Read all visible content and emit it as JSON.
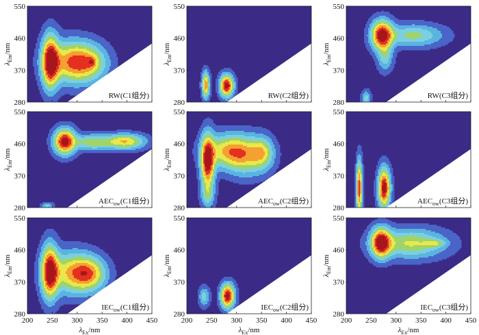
{
  "colors": {
    "background": "#3b2a86",
    "levels": [
      "#3b2a86",
      "#4a64c8",
      "#5ab4e0",
      "#7ccfe0",
      "#9ed46a",
      "#e8e84a",
      "#f5a030",
      "#e53020",
      "#a8161c"
    ],
    "masked": "#ffffff",
    "frame": "#222222"
  },
  "chart_data": {
    "type": "heatmap",
    "layout": "3x3 grid of EEM contour panels",
    "xlabel": {
      "symbol": "λ",
      "sub": "Ex",
      "suffix": "/nm"
    },
    "ylabel": {
      "symbol": "λ",
      "sub": "Em",
      "suffix": "/nm"
    },
    "xlim": [
      200,
      450
    ],
    "ylim": [
      280,
      550
    ],
    "xticks": [
      "200",
      "250",
      "300",
      "350",
      "400",
      "450"
    ],
    "yticks": [
      "280",
      "370",
      "460",
      "550"
    ],
    "panels": [
      {
        "label_main": "RW",
        "label_sub": "",
        "label_tail": "(C1组分)",
        "peaks": [
          {
            "ex": 246,
            "em": 393,
            "sx": 11,
            "sy": 48,
            "amp": 1.0
          },
          {
            "ex": 285,
            "em": 393,
            "sx": 30,
            "sy": 38,
            "amp": 0.62
          },
          {
            "ex": 322,
            "em": 390,
            "sx": 26,
            "sy": 34,
            "amp": 0.5
          },
          {
            "ex": 330,
            "em": 393,
            "sx": 6,
            "sy": 10,
            "amp": 0.25
          }
        ]
      },
      {
        "label_main": "RW",
        "label_sub": "",
        "label_tail": "(C2组分)",
        "peaks": [
          {
            "ex": 238,
            "em": 328,
            "sx": 5,
            "sy": 24,
            "amp": 0.72
          },
          {
            "ex": 280,
            "em": 326,
            "sx": 9,
            "sy": 20,
            "amp": 1.0
          }
        ]
      },
      {
        "label_main": "RW",
        "label_sub": "",
        "label_tail": "(C3组分)",
        "peaks": [
          {
            "ex": 272,
            "em": 468,
            "sx": 14,
            "sy": 27,
            "amp": 1.0
          },
          {
            "ex": 335,
            "em": 468,
            "sx": 38,
            "sy": 20,
            "amp": 0.4
          },
          {
            "ex": 278,
            "em": 405,
            "sx": 10,
            "sy": 25,
            "amp": 0.3
          },
          {
            "ex": 240,
            "em": 290,
            "sx": 6,
            "sy": 15,
            "amp": 0.3
          }
        ]
      },
      {
        "label_main": "AEC",
        "label_sub": "ow",
        "label_tail": "(C1组分)",
        "peaks": [
          {
            "ex": 275,
            "em": 466,
            "sx": 14,
            "sy": 23,
            "amp": 1.0
          },
          {
            "ex": 330,
            "em": 464,
            "sx": 25,
            "sy": 14,
            "amp": 0.45
          },
          {
            "ex": 396,
            "em": 466,
            "sx": 26,
            "sy": 14,
            "amp": 0.62
          },
          {
            "ex": 240,
            "em": 285,
            "sx": 8,
            "sy": 6,
            "amp": 0.28
          }
        ]
      },
      {
        "label_main": "AEC",
        "label_sub": "ow",
        "label_tail": "(C2组分)",
        "peaks": [
          {
            "ex": 242,
            "em": 410,
            "sx": 9,
            "sy": 48,
            "amp": 1.0
          },
          {
            "ex": 282,
            "em": 440,
            "sx": 30,
            "sy": 30,
            "amp": 0.55
          },
          {
            "ex": 320,
            "em": 425,
            "sx": 28,
            "sy": 35,
            "amp": 0.5
          },
          {
            "ex": 352,
            "em": 435,
            "sx": 14,
            "sy": 28,
            "amp": 0.4
          },
          {
            "ex": 242,
            "em": 315,
            "sx": 9,
            "sy": 24,
            "amp": 0.3
          }
        ]
      },
      {
        "label_main": "AEC",
        "label_sub": "ow",
        "label_tail": "(C3组分)",
        "peaks": [
          {
            "ex": 226,
            "em": 335,
            "sx": 4,
            "sy": 50,
            "amp": 0.85
          },
          {
            "ex": 276,
            "em": 335,
            "sx": 8,
            "sy": 36,
            "amp": 1.0
          }
        ]
      },
      {
        "label_main": "IEC",
        "label_sub": "ow",
        "label_tail": "(C1组分)",
        "peaks": [
          {
            "ex": 245,
            "em": 398,
            "sx": 11,
            "sy": 48,
            "amp": 1.0
          },
          {
            "ex": 290,
            "em": 395,
            "sx": 30,
            "sy": 38,
            "amp": 0.6
          },
          {
            "ex": 325,
            "em": 392,
            "sx": 22,
            "sy": 30,
            "amp": 0.55
          }
        ]
      },
      {
        "label_main": "IEC",
        "label_sub": "ow",
        "label_tail": "(C2组分)",
        "peaks": [
          {
            "ex": 282,
            "em": 330,
            "sx": 9,
            "sy": 22,
            "amp": 1.0
          },
          {
            "ex": 235,
            "em": 328,
            "sx": 7,
            "sy": 18,
            "amp": 0.3
          }
        ]
      },
      {
        "label_main": "IEC",
        "label_sub": "ow",
        "label_tail": "(C3组分)",
        "peaks": [
          {
            "ex": 270,
            "em": 480,
            "sx": 13,
            "sy": 27,
            "amp": 1.0
          },
          {
            "ex": 330,
            "em": 478,
            "sx": 45,
            "sy": 26,
            "amp": 0.5
          },
          {
            "ex": 378,
            "em": 478,
            "sx": 14,
            "sy": 7,
            "amp": 0.28
          }
        ]
      }
    ]
  }
}
